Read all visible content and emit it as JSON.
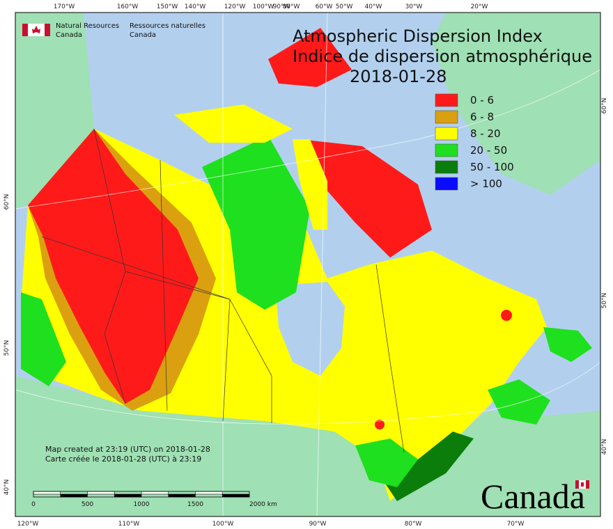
{
  "header": {
    "department_en": [
      "Natural Resources",
      "Canada"
    ],
    "department_fr": [
      "Ressources naturelles",
      "Canada"
    ]
  },
  "title": {
    "lines": [
      "Atmospheric Dispersion Index",
      "Indice de dispersion atmosphérique",
      "2018-01-28"
    ]
  },
  "legend": {
    "items": [
      {
        "label": "0 - 6",
        "color": "#ff1a1a"
      },
      {
        "label": "6 - 8",
        "color": "#dba00f"
      },
      {
        "label": "8 - 20",
        "color": "#ffff00"
      },
      {
        "label": "20 - 50",
        "color": "#1ee01e"
      },
      {
        "label": "50 - 100",
        "color": "#0a7d0a"
      },
      {
        "label": "> 100",
        "color": "#0a0aff"
      }
    ]
  },
  "graticule": {
    "top": [
      "170°W",
      "160°W",
      "150°W",
      "140°W",
      "120°W",
      "100°W",
      "90°W",
      "80°W",
      "60°W",
      "50°W",
      "40°W",
      "30°W",
      "20°W"
    ],
    "bottom": [
      "120°W",
      "110°W",
      "100°W",
      "90°W",
      "80°W",
      "70°W"
    ],
    "left": [
      "60°N",
      "50°N",
      "40°N"
    ],
    "right": [
      "60°N",
      "50°N",
      "40°N"
    ]
  },
  "notes": [
    "Map created at 23:19 (UTC) on 2018-01-28",
    "Carte créée le 2018-01-28 (UTC) à 23:19"
  ],
  "scale_bar": {
    "labels": [
      "0",
      "500",
      "1000",
      "1500",
      "2000  km"
    ]
  },
  "wordmark": "Canada"
}
